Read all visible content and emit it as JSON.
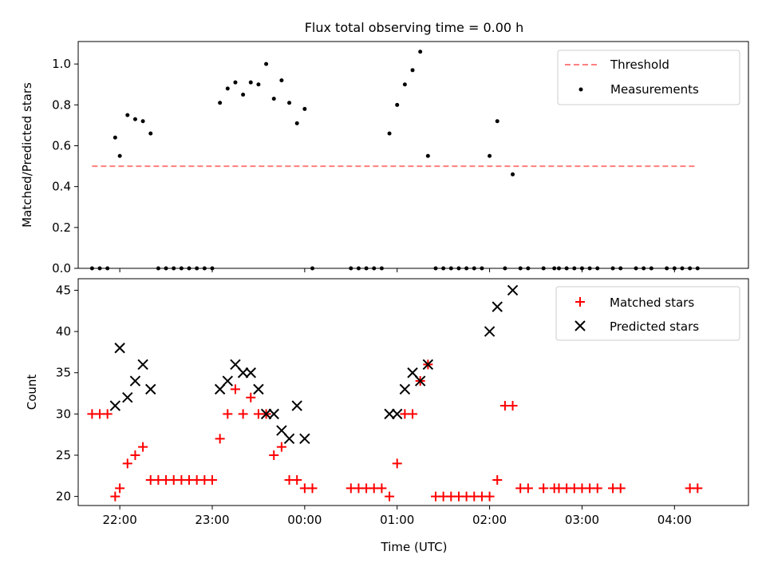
{
  "figure": {
    "title": "Flux total observing time = 0.00 h"
  },
  "chart_data": [
    {
      "type": "scatter",
      "panel": "top",
      "title": "Flux total observing time = 0.00 h",
      "xlabel": "",
      "ylabel": "Matched/Predicted stars",
      "xlim": [
        "21:33",
        "04:48"
      ],
      "ylim": [
        0,
        1.11
      ],
      "yticks": [
        "0.0",
        "0.2",
        "0.4",
        "0.6",
        "0.8",
        "1.0"
      ],
      "grid": false,
      "legend": {
        "placement": "top-right",
        "entries": [
          "Threshold",
          "Measurements"
        ]
      },
      "series": [
        {
          "name": "Threshold",
          "kind": "line",
          "style": "dashed",
          "color": "#ff7f7f",
          "x": [
            "21:42",
            "04:15"
          ],
          "y": [
            0.5,
            0.5
          ]
        },
        {
          "name": "Measurements",
          "kind": "point",
          "color": "#000000",
          "x": [
            "21:42",
            "21:47",
            "21:52",
            "21:57",
            "22:00",
            "22:05",
            "22:10",
            "22:15",
            "22:20",
            "22:25",
            "22:30",
            "22:35",
            "22:40",
            "22:45",
            "22:50",
            "22:55",
            "23:00",
            "23:05",
            "23:10",
            "23:15",
            "23:20",
            "23:25",
            "23:30",
            "23:35",
            "23:40",
            "23:45",
            "23:50",
            "23:55",
            "00:00",
            "00:05",
            "00:30",
            "00:35",
            "00:40",
            "00:45",
            "00:50",
            "00:55",
            "01:00",
            "01:05",
            "01:10",
            "01:15",
            "01:20",
            "01:25",
            "01:30",
            "01:35",
            "01:40",
            "01:45",
            "01:50",
            "01:55",
            "02:00",
            "02:05",
            "02:10",
            "02:15",
            "02:20",
            "02:25",
            "02:35",
            "02:42",
            "02:45",
            "02:50",
            "02:55",
            "03:00",
            "03:05",
            "03:10",
            "03:20",
            "03:25",
            "03:35",
            "03:40",
            "03:45",
            "03:55",
            "04:00",
            "04:05",
            "04:10",
            "04:15"
          ],
          "y": [
            0,
            0,
            0,
            0.64,
            0.55,
            0.75,
            0.73,
            0.72,
            0.66,
            0,
            0,
            0,
            0,
            0,
            0,
            0,
            0,
            0.81,
            0.88,
            0.91,
            0.85,
            0.91,
            0.9,
            1.0,
            0.83,
            0.92,
            0.81,
            0.71,
            0.78,
            0,
            0,
            0,
            0,
            0,
            0,
            0.66,
            0.8,
            0.9,
            0.97,
            1.06,
            0.55,
            0,
            0,
            0,
            0,
            0,
            0,
            0,
            0.55,
            0.72,
            0,
            0.46,
            0,
            0,
            0,
            0,
            0,
            0,
            0,
            0,
            0,
            0,
            0,
            0,
            0,
            0,
            0,
            0,
            0,
            0,
            0,
            0
          ]
        }
      ]
    },
    {
      "type": "scatter",
      "panel": "bottom",
      "title": "",
      "xlabel": "Time (UTC)",
      "ylabel": "Count",
      "xlim": [
        "21:33",
        "04:48"
      ],
      "ylim": [
        18.9,
        46.4
      ],
      "yticks": [
        "20",
        "25",
        "30",
        "35",
        "40",
        "45"
      ],
      "xticks": [
        "22:00",
        "23:00",
        "00:00",
        "01:00",
        "02:00",
        "03:00",
        "04:00"
      ],
      "grid": false,
      "legend": {
        "placement": "top-right",
        "entries": [
          "Matched stars",
          "Predicted stars"
        ]
      },
      "series": [
        {
          "name": "Matched stars",
          "marker": "plus",
          "color": "#ff0000",
          "x": [
            "21:42",
            "21:47",
            "21:52",
            "21:57",
            "22:00",
            "22:05",
            "22:10",
            "22:15",
            "22:20",
            "22:25",
            "22:30",
            "22:35",
            "22:40",
            "22:45",
            "22:50",
            "22:55",
            "23:00",
            "23:05",
            "23:10",
            "23:15",
            "23:20",
            "23:25",
            "23:30",
            "23:35",
            "23:40",
            "23:45",
            "23:50",
            "23:55",
            "00:00",
            "00:05",
            "00:30",
            "00:35",
            "00:40",
            "00:45",
            "00:50",
            "00:55",
            "01:00",
            "01:05",
            "01:10",
            "01:15",
            "01:20",
            "01:25",
            "01:30",
            "01:35",
            "01:40",
            "01:45",
            "01:50",
            "01:55",
            "02:00",
            "02:05",
            "02:10",
            "02:15",
            "02:20",
            "02:25",
            "02:35",
            "02:42",
            "02:45",
            "02:50",
            "02:55",
            "03:00",
            "03:05",
            "03:10",
            "03:20",
            "03:25",
            "04:10",
            "04:15"
          ],
          "y": [
            30,
            30,
            30,
            20,
            21,
            24,
            25,
            26,
            22,
            22,
            22,
            22,
            22,
            22,
            22,
            22,
            22,
            27,
            30,
            33,
            30,
            32,
            30,
            30,
            25,
            26,
            22,
            22,
            21,
            21,
            21,
            21,
            21,
            21,
            21,
            20,
            24,
            30,
            30,
            34,
            36,
            20,
            20,
            20,
            20,
            20,
            20,
            20,
            20,
            22,
            31,
            31,
            21,
            21,
            21,
            21,
            21,
            21,
            21,
            21,
            21,
            21,
            21,
            21,
            21,
            21
          ]
        },
        {
          "name": "Predicted stars",
          "marker": "x",
          "color": "#000000",
          "x": [
            "21:57",
            "22:00",
            "22:05",
            "22:10",
            "22:15",
            "22:20",
            "23:05",
            "23:10",
            "23:15",
            "23:20",
            "23:25",
            "23:30",
            "23:35",
            "23:40",
            "23:45",
            "23:50",
            "23:55",
            "00:00",
            "00:55",
            "01:00",
            "01:05",
            "01:10",
            "01:15",
            "01:20",
            "02:00",
            "02:05",
            "02:15"
          ],
          "y": [
            31,
            38,
            32,
            34,
            36,
            33,
            33,
            34,
            36,
            35,
            35,
            33,
            30,
            30,
            28,
            27,
            31,
            27,
            30,
            30,
            33,
            35,
            34,
            36,
            40,
            43,
            45
          ]
        }
      ]
    }
  ]
}
